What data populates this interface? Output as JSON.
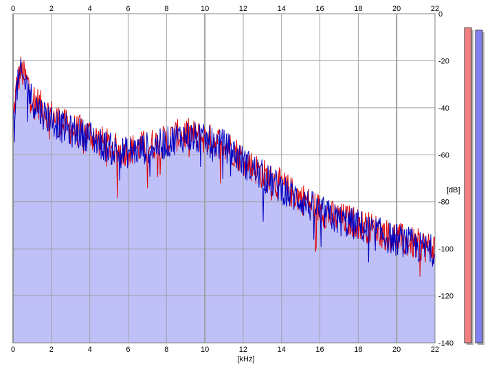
{
  "chart_data": {
    "type": "area",
    "xlabel": "[kHz]",
    "ylabel": "[dB]",
    "xlim": [
      0,
      22
    ],
    "ylim": [
      -140,
      0
    ],
    "x_ticks": [
      0,
      2,
      4,
      6,
      8,
      10,
      12,
      14,
      16,
      18,
      20,
      22
    ],
    "y_ticks": [
      0,
      -20,
      -40,
      -60,
      -80,
      -100,
      -120,
      -140
    ],
    "y_tick_labels": [
      "0",
      "-20",
      "-40",
      "-60",
      "-80",
      "-100",
      "-120",
      "-140"
    ],
    "grid": true,
    "series": [
      {
        "color": "#e00000",
        "x": [
          0,
          0.2,
          0.4,
          0.6,
          0.8,
          1,
          1.5,
          2,
          2.5,
          3,
          3.5,
          4,
          4.5,
          5,
          5.5,
          6,
          6.5,
          7,
          7.5,
          8,
          8.5,
          9,
          9.5,
          10,
          10.5,
          11,
          11.5,
          12,
          12.5,
          13,
          13.5,
          14,
          14.5,
          15,
          15.5,
          16,
          16.5,
          17,
          17.5,
          18,
          18.5,
          19,
          19.5,
          20,
          20.5,
          21,
          21.5,
          22
        ],
        "values": [
          -45,
          -30,
          -24,
          -27,
          -30,
          -35,
          -40,
          -43,
          -46,
          -49,
          -50,
          -51,
          -54,
          -56,
          -58,
          -58,
          -57,
          -56,
          -55,
          -54,
          -52,
          -51,
          -52,
          -53,
          -54,
          -55,
          -58,
          -62,
          -65,
          -68,
          -71,
          -73,
          -76,
          -78,
          -81,
          -83,
          -86,
          -87,
          -88,
          -89,
          -91,
          -92,
          -94,
          -95,
          -97,
          -98,
          -99,
          -100
        ]
      },
      {
        "color": "#0000c0",
        "x": [
          0,
          0.2,
          0.4,
          0.6,
          0.8,
          1,
          1.5,
          2,
          2.5,
          3,
          3.5,
          4,
          4.5,
          5,
          5.5,
          6,
          6.5,
          7,
          7.5,
          8,
          8.5,
          9,
          9.5,
          10,
          10.5,
          11,
          11.5,
          12,
          12.5,
          13,
          13.5,
          14,
          14.5,
          15,
          15.5,
          16,
          16.5,
          17,
          17.5,
          18,
          18.5,
          19,
          19.5,
          20,
          20.5,
          21,
          21.5,
          22
        ],
        "values": [
          -47,
          -32,
          -26,
          -29,
          -32,
          -37,
          -42,
          -45,
          -48,
          -50,
          -51,
          -52,
          -55,
          -57,
          -59,
          -59,
          -58,
          -57,
          -56,
          -55,
          -53,
          -52,
          -53,
          -54,
          -55,
          -56,
          -59,
          -63,
          -66,
          -69,
          -72,
          -74,
          -77,
          -79,
          -82,
          -84,
          -86,
          -88,
          -89,
          -90,
          -92,
          -93,
          -95,
          -96,
          -97,
          -99,
          -100,
          -101
        ]
      }
    ],
    "fill_color": "#c0c0f8",
    "level_meters": [
      {
        "color": "#f08080",
        "level_db": -6
      },
      {
        "color": "#8080f0",
        "level_db": -7
      }
    ]
  }
}
